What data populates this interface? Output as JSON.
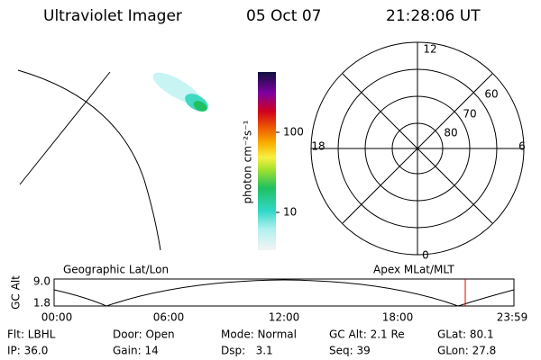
{
  "header": {
    "title": "Ultraviolet Imager",
    "date": "05 Oct 07",
    "time": "21:28:06 UT"
  },
  "colorbar": {
    "label": "photon cm⁻²s⁻¹",
    "ticks": [
      "100",
      "10"
    ]
  },
  "polar": {
    "labels": {
      "top": "12",
      "left": "18",
      "right": "6",
      "bottom": "0"
    },
    "rings": [
      "60",
      "70",
      "80"
    ]
  },
  "orbit": {
    "left_title": "Geographic Lat/Lon",
    "right_title": "Apex MLat/MLT",
    "y_label": "GC Alt",
    "y_ticks": [
      "9.0",
      "1.8"
    ],
    "x_ticks": [
      "00:00",
      "06:00",
      "12:00",
      "18:00",
      "23:59"
    ]
  },
  "footer": {
    "rows": [
      [
        "Flt: LBHL",
        "Door: Open",
        "Mode: Normal",
        "GC Alt: 2.1 Re",
        "GLat: 80.1"
      ],
      [
        "IP: 36.0",
        "Gain: 14",
        "Dsp:   3.1",
        "Seq: 39",
        "GLon: 27.8"
      ]
    ]
  }
}
